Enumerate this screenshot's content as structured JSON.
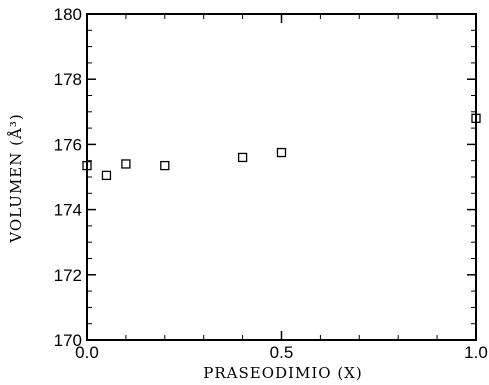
{
  "chart_data": {
    "type": "scatter",
    "xlabel": "PRASEODIMIO (X)",
    "ylabel": "VOLUMEN (Å³)",
    "xlim": [
      0,
      1
    ],
    "ylim": [
      170,
      180
    ],
    "x_ticks": [
      0.0,
      0.5,
      1.0
    ],
    "x_tick_labels": [
      "0.0",
      "0.5",
      "1.0"
    ],
    "y_ticks": [
      170,
      172,
      174,
      176,
      178,
      180
    ],
    "y_tick_labels": [
      "170",
      "172",
      "174",
      "176",
      "178",
      "180"
    ],
    "marker": "open-square",
    "grid": false,
    "series": [
      {
        "x": [
          0.0,
          0.05,
          0.1,
          0.2,
          0.4,
          0.5,
          1.0
        ],
        "y": [
          175.35,
          175.05,
          175.4,
          175.35,
          175.6,
          175.75,
          176.8
        ]
      }
    ]
  }
}
